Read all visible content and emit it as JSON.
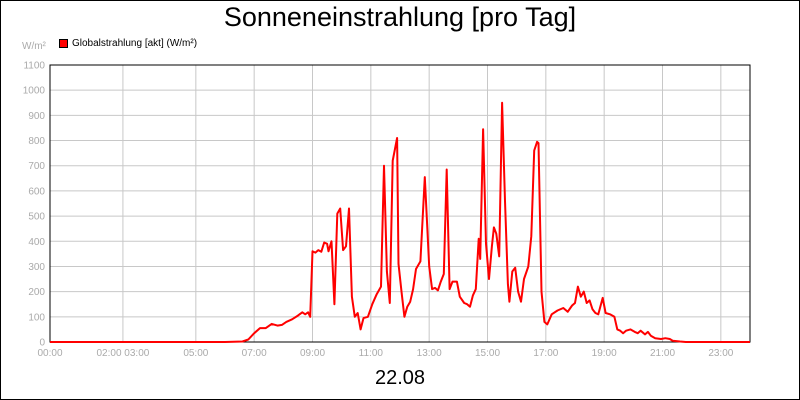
{
  "chart_data": {
    "type": "line",
    "title": "Sonneneinstrahlung [pro Tag]",
    "unit_label": "W/m²",
    "date_label": "22.08",
    "ylim": [
      0,
      1100
    ],
    "xlim": [
      0,
      24
    ],
    "yticks": [
      {
        "label": "0",
        "value": 0
      },
      {
        "label": "100",
        "value": 100
      },
      {
        "label": "200",
        "value": 200
      },
      {
        "label": "300",
        "value": 300
      },
      {
        "label": "400",
        "value": 400
      },
      {
        "label": "500",
        "value": 500
      },
      {
        "label": "600",
        "value": 600
      },
      {
        "label": "700",
        "value": 700
      },
      {
        "label": "800",
        "value": 800
      },
      {
        "label": "900",
        "value": 900
      },
      {
        "label": "1000",
        "value": 1000
      },
      {
        "label": "1100",
        "value": 1100
      }
    ],
    "xticks": [
      {
        "label": "00:00",
        "value": 0
      },
      {
        "label": "02:00 03:00",
        "value": 2.5
      },
      {
        "label": "05:00",
        "value": 5
      },
      {
        "label": "07:00",
        "value": 7
      },
      {
        "label": "09:00",
        "value": 9
      },
      {
        "label": "11:00",
        "value": 11
      },
      {
        "label": "13:00",
        "value": 13
      },
      {
        "label": "15:00",
        "value": 15
      },
      {
        "label": "17:00",
        "value": 17
      },
      {
        "label": "19:00",
        "value": 19
      },
      {
        "label": "21:00",
        "value": 21
      },
      {
        "label": "23:00",
        "value": 23
      }
    ],
    "grid": true,
    "legend_position": "top-left",
    "series": [
      {
        "name": "Globalstrahlung [akt] (W/m²)",
        "color": "#ff0000",
        "points": [
          [
            0,
            0
          ],
          [
            6,
            0
          ],
          [
            6.6,
            2
          ],
          [
            6.8,
            10
          ],
          [
            7,
            35
          ],
          [
            7.2,
            55
          ],
          [
            7.4,
            55
          ],
          [
            7.6,
            72
          ],
          [
            7.8,
            65
          ],
          [
            7.95,
            68
          ],
          [
            8.1,
            80
          ],
          [
            8.3,
            90
          ],
          [
            8.5,
            105
          ],
          [
            8.65,
            118
          ],
          [
            8.75,
            110
          ],
          [
            8.85,
            118
          ],
          [
            8.92,
            100
          ],
          [
            9.0,
            360
          ],
          [
            9.1,
            355
          ],
          [
            9.2,
            365
          ],
          [
            9.3,
            358
          ],
          [
            9.4,
            395
          ],
          [
            9.5,
            390
          ],
          [
            9.55,
            360
          ],
          [
            9.65,
            400
          ],
          [
            9.75,
            150
          ],
          [
            9.85,
            510
          ],
          [
            9.95,
            530
          ],
          [
            10.05,
            365
          ],
          [
            10.15,
            380
          ],
          [
            10.25,
            530
          ],
          [
            10.35,
            180
          ],
          [
            10.45,
            100
          ],
          [
            10.55,
            115
          ],
          [
            10.65,
            50
          ],
          [
            10.75,
            95
          ],
          [
            10.9,
            100
          ],
          [
            11.05,
            150
          ],
          [
            11.2,
            190
          ],
          [
            11.35,
            220
          ],
          [
            11.45,
            700
          ],
          [
            11.55,
            280
          ],
          [
            11.65,
            155
          ],
          [
            11.75,
            720
          ],
          [
            11.9,
            810
          ],
          [
            11.95,
            310
          ],
          [
            12.05,
            200
          ],
          [
            12.15,
            100
          ],
          [
            12.25,
            140
          ],
          [
            12.35,
            160
          ],
          [
            12.45,
            210
          ],
          [
            12.55,
            290
          ],
          [
            12.7,
            320
          ],
          [
            12.85,
            655
          ],
          [
            13.0,
            300
          ],
          [
            13.1,
            210
          ],
          [
            13.2,
            215
          ],
          [
            13.3,
            205
          ],
          [
            13.4,
            240
          ],
          [
            13.5,
            270
          ],
          [
            13.6,
            685
          ],
          [
            13.7,
            210
          ],
          [
            13.8,
            240
          ],
          [
            13.95,
            240
          ],
          [
            14.05,
            180
          ],
          [
            14.2,
            155
          ],
          [
            14.3,
            150
          ],
          [
            14.4,
            140
          ],
          [
            14.5,
            185
          ],
          [
            14.6,
            210
          ],
          [
            14.7,
            410
          ],
          [
            14.75,
            330
          ],
          [
            14.85,
            845
          ],
          [
            14.95,
            390
          ],
          [
            15.05,
            250
          ],
          [
            15.15,
            380
          ],
          [
            15.22,
            455
          ],
          [
            15.3,
            430
          ],
          [
            15.4,
            340
          ],
          [
            15.5,
            950
          ],
          [
            15.6,
            560
          ],
          [
            15.7,
            230
          ],
          [
            15.75,
            160
          ],
          [
            15.85,
            280
          ],
          [
            15.95,
            295
          ],
          [
            16.05,
            200
          ],
          [
            16.15,
            160
          ],
          [
            16.25,
            250
          ],
          [
            16.4,
            300
          ],
          [
            16.5,
            420
          ],
          [
            16.6,
            760
          ],
          [
            16.7,
            795
          ],
          [
            16.75,
            790
          ],
          [
            16.85,
            200
          ],
          [
            16.95,
            80
          ],
          [
            17.05,
            70
          ],
          [
            17.2,
            110
          ],
          [
            17.4,
            125
          ],
          [
            17.6,
            135
          ],
          [
            17.75,
            120
          ],
          [
            17.9,
            145
          ],
          [
            18.0,
            155
          ],
          [
            18.1,
            220
          ],
          [
            18.2,
            180
          ],
          [
            18.3,
            200
          ],
          [
            18.4,
            155
          ],
          [
            18.5,
            165
          ],
          [
            18.6,
            130
          ],
          [
            18.7,
            115
          ],
          [
            18.8,
            110
          ],
          [
            18.95,
            175
          ],
          [
            19.05,
            115
          ],
          [
            19.2,
            110
          ],
          [
            19.35,
            100
          ],
          [
            19.45,
            50
          ],
          [
            19.55,
            45
          ],
          [
            19.65,
            35
          ],
          [
            19.75,
            45
          ],
          [
            19.9,
            50
          ],
          [
            20.05,
            40
          ],
          [
            20.15,
            35
          ],
          [
            20.25,
            45
          ],
          [
            20.4,
            30
          ],
          [
            20.5,
            40
          ],
          [
            20.6,
            25
          ],
          [
            20.75,
            15
          ],
          [
            20.95,
            12
          ],
          [
            21.1,
            15
          ],
          [
            21.25,
            12
          ],
          [
            21.35,
            5
          ],
          [
            21.6,
            2
          ],
          [
            21.8,
            0
          ],
          [
            24,
            0
          ]
        ]
      }
    ]
  }
}
